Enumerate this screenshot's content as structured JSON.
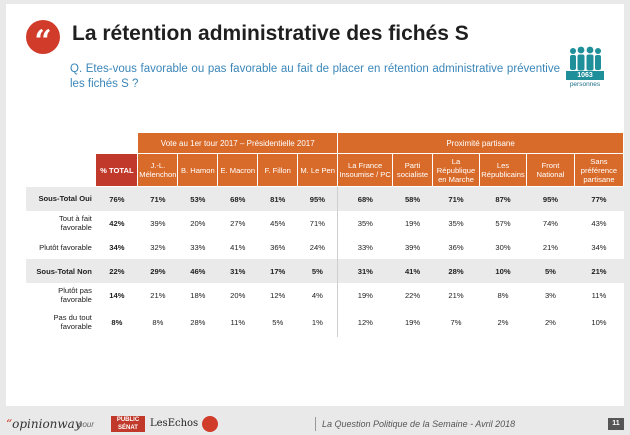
{
  "header": {
    "quote_mark": "“",
    "title": "La rétention administrative des fichés S",
    "question": "Q. Etes-vous favorable ou pas favorable au fait de placer en rétention administrative préventive les fichés S ?",
    "sample_count": "1063",
    "sample_label": "personnes"
  },
  "table": {
    "group_vote": "Vote au 1er tour 2017 – Présidentielle 2017",
    "group_party": "Proximité partisane",
    "col_total": "% TOTAL",
    "vote_cols": [
      "J.-L. Mélenchon",
      "B. Hamon",
      "E. Macron",
      "F. Fillon",
      "M. Le Pen"
    ],
    "party_cols": [
      "La France Insoumise / PC",
      "Parti socialiste",
      "La République en Marche",
      "Les Républicains",
      "Front National",
      "Sans préférence partisane"
    ],
    "rows": [
      {
        "label": "Sous-Total Oui",
        "values": [
          "76%",
          "71%",
          "53%",
          "68%",
          "81%",
          "95%",
          "68%",
          "58%",
          "71%",
          "87%",
          "95%",
          "77%"
        ]
      },
      {
        "label": "Tout à fait favorable",
        "values": [
          "42%",
          "39%",
          "20%",
          "27%",
          "45%",
          "71%",
          "35%",
          "19%",
          "35%",
          "57%",
          "74%",
          "43%"
        ]
      },
      {
        "label": "Plutôt favorable",
        "values": [
          "34%",
          "32%",
          "33%",
          "41%",
          "36%",
          "24%",
          "33%",
          "39%",
          "36%",
          "30%",
          "21%",
          "34%"
        ]
      },
      {
        "label": "Sous-Total Non",
        "values": [
          "22%",
          "29%",
          "46%",
          "31%",
          "17%",
          "5%",
          "31%",
          "41%",
          "28%",
          "10%",
          "5%",
          "21%"
        ]
      },
      {
        "label": "Plutôt pas favorable",
        "values": [
          "14%",
          "21%",
          "18%",
          "20%",
          "12%",
          "4%",
          "19%",
          "22%",
          "21%",
          "8%",
          "3%",
          "11%"
        ]
      },
      {
        "label": "Pas du tout favorable",
        "values": [
          "8%",
          "8%",
          "28%",
          "11%",
          "5%",
          "1%",
          "12%",
          "19%",
          "7%",
          "2%",
          "2%",
          "10%"
        ]
      }
    ]
  },
  "footer": {
    "brand_quote": "“",
    "brand": "opinionway",
    "pour": "pour",
    "logo_public_senat": "PUBLIC SÉNAT",
    "logo_les_echos": "LesEchos",
    "caption": "La Question Politique de la Semaine - Avril 2018",
    "page_number": "11"
  },
  "colors": {
    "accent_orange": "#d96b2a",
    "accent_red": "#c0392b",
    "question_blue": "#3b86b8",
    "teal": "#1f8f9a"
  }
}
